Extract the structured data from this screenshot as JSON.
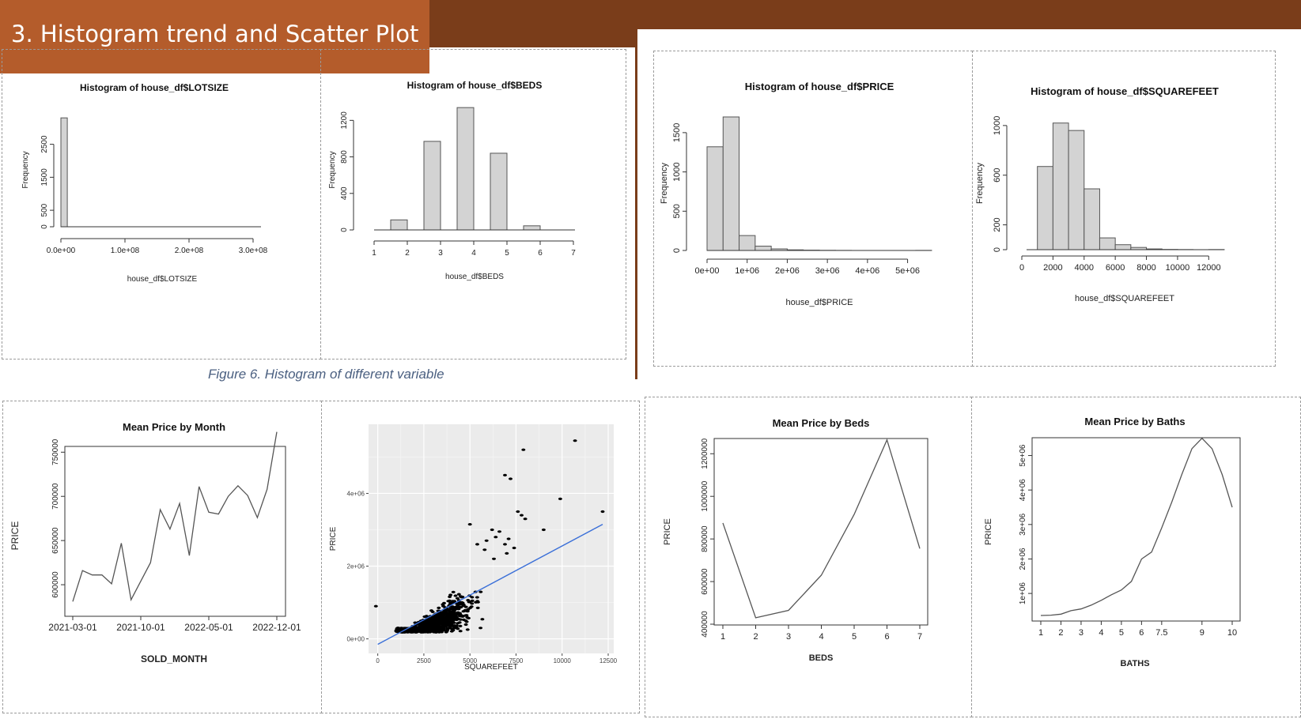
{
  "slide": {
    "title": "3. Histogram trend and Scatter Plot",
    "caption": "Figure 6. Histogram of different variable",
    "colors": {
      "header_dark": "#7a3d1a",
      "title_box": "#b45c2b",
      "caption": "#4a5f80",
      "bar_fill": "#d3d3d3",
      "regression_line": "#3a6fd8"
    }
  },
  "chart_data": [
    {
      "type": "bar",
      "title": "Histogram of house_df$LOTSIZE",
      "xlabel": "house_df$LOTSIZE",
      "ylabel": "Frequency",
      "bins": [
        [
          0,
          10000000,
          3300
        ]
      ],
      "xlim": [
        0,
        300000000
      ],
      "ylim": [
        0,
        3400
      ],
      "x_ticks": [
        0,
        100000000,
        200000000,
        300000000
      ],
      "x_tick_labels": [
        "0.0e+00",
        "1.0e+08",
        "2.0e+08",
        "3.0e+08"
      ],
      "y_ticks": [
        0,
        500,
        1500,
        2500
      ],
      "y_tick_labels": [
        "0",
        "500",
        "1500",
        "2500"
      ]
    },
    {
      "type": "bar",
      "title": "Histogram of house_df$BEDS",
      "xlabel": "house_df$BEDS",
      "ylabel": "Frequency",
      "bins": [
        [
          1.5,
          2,
          110
        ],
        [
          2.5,
          3,
          970
        ],
        [
          3.5,
          4,
          1340
        ],
        [
          4.5,
          5,
          840
        ],
        [
          5.5,
          6,
          45
        ]
      ],
      "xlim": [
        1,
        7
      ],
      "ylim": [
        0,
        1350
      ],
      "x_ticks": [
        1,
        2,
        3,
        4,
        5,
        6,
        7
      ],
      "x_tick_labels": [
        "1",
        "2",
        "3",
        "4",
        "5",
        "6",
        "7"
      ],
      "y_ticks": [
        0,
        400,
        800,
        1200
      ],
      "y_tick_labels": [
        "0",
        "400",
        "800",
        "1200"
      ]
    },
    {
      "type": "bar",
      "title": "Histogram of house_df$PRICE",
      "xlabel": "house_df$PRICE",
      "ylabel": "Frequency",
      "bins": [
        [
          0,
          400000,
          1320
        ],
        [
          400000,
          800000,
          1700
        ],
        [
          800000,
          1200000,
          190
        ],
        [
          1200000,
          1600000,
          55
        ],
        [
          1600000,
          2000000,
          20
        ],
        [
          2000000,
          2400000,
          8
        ],
        [
          2400000,
          2800000,
          4
        ],
        [
          2800000,
          3200000,
          2
        ],
        [
          3200000,
          3600000,
          1
        ],
        [
          3600000,
          4000000,
          0
        ],
        [
          4000000,
          4400000,
          0
        ],
        [
          4400000,
          4800000,
          0
        ],
        [
          4800000,
          5200000,
          0
        ],
        [
          5200000,
          5600000,
          1
        ]
      ],
      "xlim": [
        0,
        5600000
      ],
      "ylim": [
        0,
        1700
      ],
      "x_ticks": [
        0,
        1000000,
        2000000,
        3000000,
        4000000,
        5000000
      ],
      "x_tick_labels": [
        "0e+00",
        "1e+06",
        "2e+06",
        "3e+06",
        "4e+06",
        "5e+06"
      ],
      "y_ticks": [
        0,
        500,
        1000,
        1500
      ],
      "y_tick_labels": [
        "0",
        "500",
        "1000",
        "1500"
      ]
    },
    {
      "type": "bar",
      "title": "Histogram of house_df$SQUAREFEET",
      "xlabel": "house_df$SQUAREFEET",
      "ylabel": "Frequency",
      "bins": [
        [
          1000,
          2000,
          670
        ],
        [
          2000,
          3000,
          1020
        ],
        [
          3000,
          4000,
          960
        ],
        [
          4000,
          5000,
          490
        ],
        [
          5000,
          6000,
          95
        ],
        [
          6000,
          7000,
          40
        ],
        [
          7000,
          8000,
          18
        ],
        [
          8000,
          9000,
          6
        ],
        [
          9000,
          10000,
          2
        ],
        [
          10000,
          11000,
          1
        ],
        [
          11000,
          12000,
          0
        ],
        [
          12000,
          13000,
          1
        ]
      ],
      "xlim": [
        0,
        13000
      ],
      "ylim": [
        0,
        1050
      ],
      "x_ticks": [
        0,
        2000,
        4000,
        6000,
        8000,
        10000,
        12000
      ],
      "x_tick_labels": [
        "0",
        "2000",
        "4000",
        "6000",
        "8000",
        "10000",
        "12000"
      ],
      "y_ticks": [
        0,
        200,
        600,
        1000
      ],
      "y_tick_labels": [
        "0",
        "200",
        "600",
        "1000"
      ]
    },
    {
      "type": "line",
      "title": "Mean Price by Month",
      "xlabel": "SOLD_MONTH",
      "ylabel": "PRICE",
      "values": [
        581000,
        616000,
        611000,
        611000,
        601000,
        647000,
        583000,
        604000,
        625000,
        685000,
        663000,
        692000,
        633000,
        711000,
        682000,
        680000,
        700000,
        712000,
        701000,
        676000,
        708000,
        773000
      ],
      "ylim": [
        575000,
        778000
      ],
      "x_tick_positions": [
        0,
        7,
        14,
        21
      ],
      "x_tick_labels": [
        "2021-03-01",
        "2021-10-01",
        "2022-05-01",
        "2022-12-01"
      ],
      "y_ticks": [
        600000,
        650000,
        700000,
        750000
      ],
      "y_tick_labels": [
        "600000",
        "650000",
        "700000",
        "750000"
      ]
    },
    {
      "type": "scatter",
      "title": "",
      "xlabel": "SQUAREFEET",
      "ylabel": "PRICE",
      "xlim": [
        -500,
        12800
      ],
      "ylim": [
        -400000,
        5900000
      ],
      "x_ticks": [
        0,
        2500,
        5000,
        7500,
        10000,
        12500
      ],
      "x_tick_labels": [
        "0",
        "2500",
        "5000",
        "7500",
        "10000",
        "12500"
      ],
      "y_ticks": [
        0,
        2000000,
        4000000
      ],
      "y_tick_labels": [
        "0e+00",
        "2e+06",
        "4e+06"
      ],
      "outliers": [
        [
          10700,
          5450000
        ],
        [
          7900,
          5200000
        ],
        [
          6900,
          4500000
        ],
        [
          7200,
          4400000
        ],
        [
          9900,
          3850000
        ],
        [
          12200,
          3500000
        ],
        [
          7600,
          3500000
        ],
        [
          7800,
          3400000
        ],
        [
          8000,
          3300000
        ],
        [
          9000,
          3000000
        ],
        [
          5000,
          3150000
        ],
        [
          6200,
          3000000
        ],
        [
          6600,
          2950000
        ],
        [
          6400,
          2800000
        ],
        [
          7100,
          2750000
        ],
        [
          6900,
          2600000
        ],
        [
          7400,
          2500000
        ],
        [
          5800,
          2450000
        ],
        [
          7000,
          2350000
        ],
        [
          6300,
          2200000
        ],
        [
          -100,
          900000
        ],
        [
          5400,
          2600000
        ],
        [
          5900,
          2700000
        ]
      ],
      "fit_line": [
        [
          0,
          -150000
        ],
        [
          12200,
          3150000
        ]
      ]
    },
    {
      "type": "line",
      "title": "Mean Price by Beds",
      "xlabel": "BEDS",
      "ylabel": "PRICE",
      "x": [
        1,
        2,
        3,
        4,
        5,
        6,
        7
      ],
      "values": [
        875000,
        430000,
        465000,
        630000,
        915000,
        1265000,
        755000
      ],
      "xlim": [
        1,
        7
      ],
      "ylim": [
        400000,
        1290000
      ],
      "x_ticks": [
        1,
        2,
        3,
        4,
        5,
        6,
        7
      ],
      "x_tick_labels": [
        "1",
        "2",
        "3",
        "4",
        "5",
        "6",
        "7"
      ],
      "y_ticks": [
        400000,
        600000,
        800000,
        1000000,
        1200000
      ],
      "y_tick_labels": [
        "400000",
        "600000",
        "800000",
        "1000000",
        "1200000"
      ]
    },
    {
      "type": "line",
      "title": "Mean Price by Baths",
      "xlabel": "BATHS",
      "ylabel": "PRICE",
      "x": [
        1,
        2,
        3,
        4,
        5,
        6,
        7,
        8,
        9,
        10,
        11,
        12,
        13,
        14,
        15,
        16,
        17,
        18,
        19,
        20
      ],
      "values": [
        360000,
        370000,
        400000,
        500000,
        550000,
        660000,
        800000,
        960000,
        1100000,
        1350000,
        2000000,
        2200000,
        2900000,
        3650000,
        4450000,
        5200000,
        5500000,
        5200000,
        4450000,
        3500000
      ],
      "xlim": [
        1,
        20
      ],
      "ylim": [
        200000,
        5700000
      ],
      "x_tick_positions": [
        1,
        3,
        5,
        7,
        9,
        11,
        13,
        17,
        20
      ],
      "x_tick_labels": [
        "1",
        "2",
        "3",
        "4",
        "5",
        "6",
        "7.5",
        "9",
        "10"
      ],
      "y_ticks": [
        1000000,
        2000000,
        3000000,
        4000000,
        5000000
      ],
      "y_tick_labels": [
        "1e+06",
        "2e+06",
        "3e+06",
        "4e+06",
        "5e+06"
      ]
    }
  ]
}
